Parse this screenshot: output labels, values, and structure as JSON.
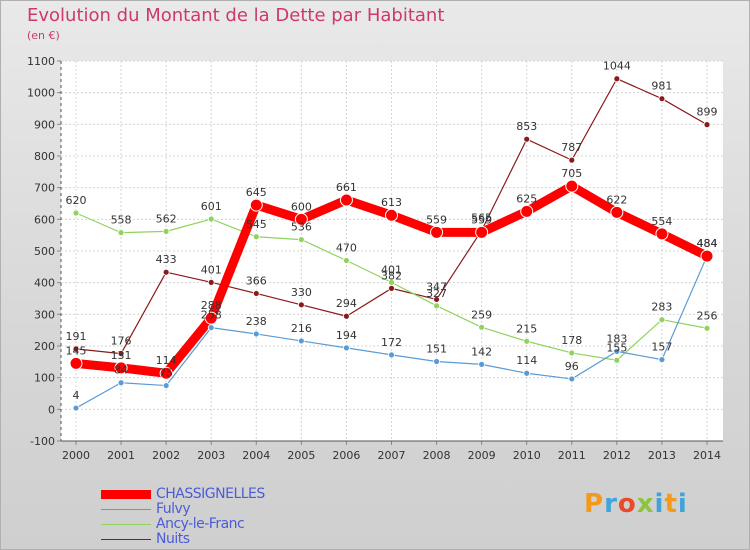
{
  "title": "Evolution du Montant de la Dette par Habitant",
  "subtitle": "(en €)",
  "logo": {
    "text": "Proxiti",
    "colors": [
      "#f39a1a",
      "#3fa4d9",
      "#e94b2a",
      "#8bc53f",
      "#3fa4d9"
    ]
  },
  "chart_data": {
    "type": "line",
    "title": "Evolution du Montant de la Dette par Habitant",
    "ylabel": "(en €)",
    "xlabel": "",
    "x": [
      "2000",
      "2001",
      "2002",
      "2003",
      "2004",
      "2005",
      "2006",
      "2007",
      "2008",
      "2009",
      "2010",
      "2011",
      "2012",
      "2013",
      "2014"
    ],
    "ylim": [
      -100,
      1100
    ],
    "yticks": [
      -100,
      0,
      100,
      200,
      300,
      400,
      500,
      600,
      700,
      800,
      900,
      1000,
      1100
    ],
    "grid": true,
    "legend_position": "bottom-left",
    "series": [
      {
        "name": "CHASSIGNELLES",
        "color": "#ff0000",
        "values": [
          145,
          131,
          114,
          288,
          645,
          600,
          661,
          613,
          559,
          559,
          625,
          705,
          622,
          554,
          484
        ]
      },
      {
        "name": "Fulvy",
        "color": "#5b9bd5",
        "values": [
          4,
          84,
          75,
          258,
          238,
          216,
          194,
          172,
          151,
          142,
          114,
          96,
          183,
          157,
          484
        ]
      },
      {
        "name": "Ancy-le-Franc",
        "color": "#8fd35c",
        "values": [
          620,
          558,
          562,
          601,
          545,
          536,
          470,
          401,
          327,
          259,
          215,
          178,
          155,
          283,
          256
        ]
      },
      {
        "name": "Nuits",
        "color": "#8b1a1a",
        "values": [
          191,
          176,
          433,
          401,
          366,
          330,
          294,
          382,
          347,
          565,
          853,
          787,
          1044,
          981,
          899
        ]
      }
    ]
  }
}
